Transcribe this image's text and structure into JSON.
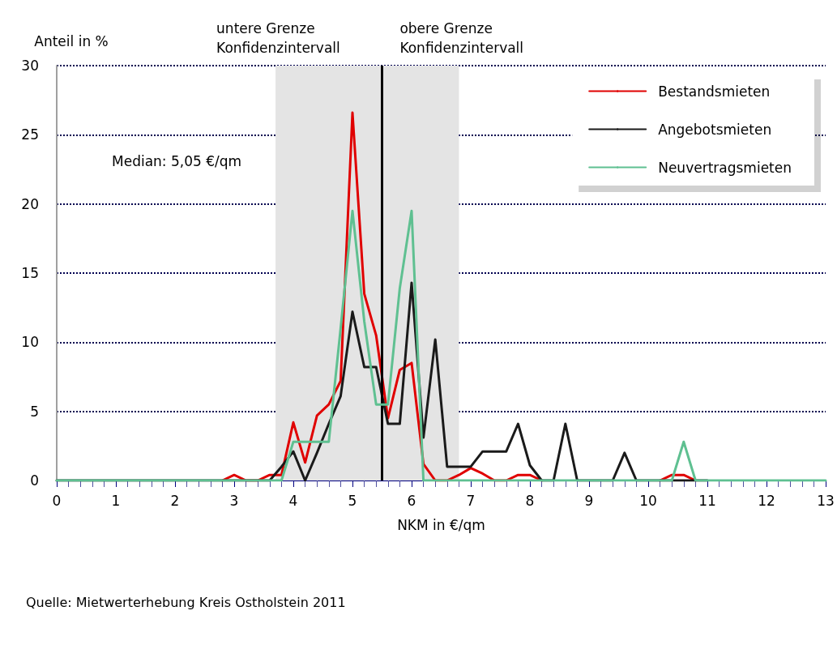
{
  "chart_data": {
    "type": "line",
    "xlabel": "NKM in €/qm",
    "ylabel": "Anteil in %",
    "x": [
      0,
      0.2,
      0.4,
      0.6,
      0.8,
      1,
      1.2,
      1.4,
      1.6,
      1.8,
      2,
      2.2,
      2.4,
      2.6,
      2.8,
      3,
      3.2,
      3.4,
      3.6,
      3.8,
      4,
      4.2,
      4.4,
      4.6,
      4.8,
      5,
      5.2,
      5.4,
      5.6,
      5.8,
      6,
      6.2,
      6.4,
      6.6,
      6.8,
      7,
      7.2,
      7.4,
      7.6,
      7.8,
      8,
      8.2,
      8.4,
      8.6,
      8.8,
      9,
      9.2,
      9.4,
      9.6,
      9.8,
      10,
      10.2,
      10.4,
      10.6,
      10.8,
      11,
      11.2,
      11.4,
      11.6,
      11.8,
      12,
      12.2,
      12.4,
      12.6,
      12.8,
      13
    ],
    "series": [
      {
        "name": "Bestandsmieten",
        "color": "#e00000",
        "values": [
          null,
          null,
          null,
          null,
          null,
          null,
          null,
          null,
          null,
          null,
          null,
          null,
          null,
          null,
          0,
          0.4,
          0,
          0,
          0.4,
          0.4,
          4.2,
          1.3,
          4.7,
          5.5,
          7.2,
          26.6,
          13.5,
          10.5,
          4.5,
          8.0,
          8.5,
          1.2,
          0,
          0,
          0.4,
          0.9,
          0.5,
          0,
          0,
          0.4,
          0.4,
          0,
          null,
          null,
          null,
          null,
          null,
          null,
          null,
          null,
          null,
          0,
          0.4,
          0.4,
          0,
          null,
          null,
          null,
          null,
          null,
          null,
          null,
          null,
          null,
          null,
          null
        ]
      },
      {
        "name": "Angebotsmieten",
        "color": "#1a1a1a",
        "values": [
          0,
          0,
          0,
          0,
          0,
          0,
          0,
          0,
          0,
          0,
          0,
          0,
          0,
          0,
          0,
          0,
          0,
          0,
          0,
          1.0,
          2.1,
          0,
          2.0,
          4.1,
          6.1,
          12.2,
          8.2,
          8.2,
          4.1,
          4.1,
          14.3,
          3.1,
          10.2,
          1.0,
          1.0,
          1.0,
          2.1,
          2.1,
          2.1,
          4.1,
          1.1,
          0,
          0,
          4.1,
          0,
          0,
          0,
          0,
          2.0,
          0,
          0,
          0,
          0,
          0,
          0,
          0,
          null,
          null,
          null,
          null,
          null,
          null,
          null,
          null,
          null,
          null
        ]
      },
      {
        "name": "Neuvertragsmieten",
        "color": "#5fc091",
        "values": [
          0,
          0,
          0,
          0,
          0,
          0,
          0,
          0,
          0,
          0,
          0,
          0,
          0,
          0,
          0,
          0,
          0,
          0,
          0,
          0,
          2.8,
          2.8,
          2.8,
          2.8,
          11.0,
          19.5,
          11.5,
          5.5,
          5.5,
          13.9,
          19.5,
          0,
          0,
          0,
          0,
          0,
          0,
          0,
          0,
          0,
          0,
          0,
          0,
          0,
          0,
          0,
          0,
          0,
          0,
          0,
          0,
          0,
          0,
          2.8,
          0,
          0,
          0,
          0,
          0,
          0,
          0,
          0,
          0,
          0,
          0,
          0
        ]
      }
    ],
    "xlim": [
      0,
      13
    ],
    "xticks": [
      0,
      1,
      2,
      3,
      4,
      5,
      6,
      7,
      8,
      9,
      10,
      11,
      12,
      13
    ],
    "ylim": [
      0,
      30
    ],
    "yticks": [
      0,
      5,
      10,
      15,
      20,
      25,
      30
    ],
    "grid": "y",
    "legend": "top right",
    "marker": "none",
    "line_style": "solid",
    "bands": [
      {
        "axis": "x",
        "from": 3.7,
        "to": 6.8,
        "color": "#e4e4e4"
      }
    ],
    "ref_lines": [
      {
        "axis": "x",
        "value": 5.5,
        "color": "#000000",
        "line_style": "solid"
      }
    ],
    "annotations": [
      {
        "text": "untere Grenze\nKonfidenzintervall",
        "x": 3.7,
        "y": 30
      },
      {
        "text": "obere Grenze\nKonfidenzintervall",
        "x": 6.8,
        "y": 30
      },
      "Median: 5,05 €/qm",
      "Quelle: Mietwerterhebung Kreis Ostholstein 2011"
    ]
  }
}
